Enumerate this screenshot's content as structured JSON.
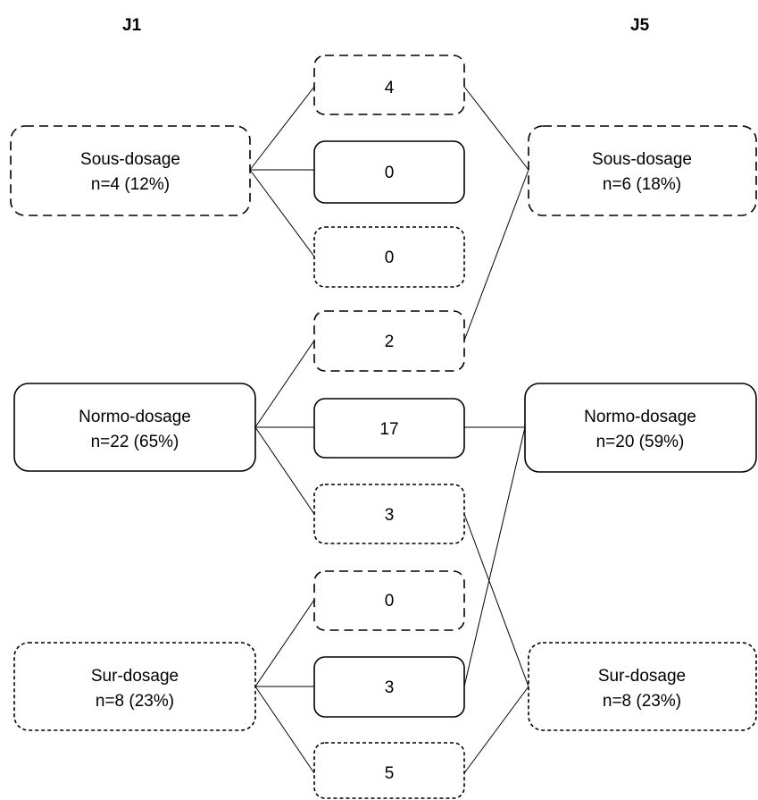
{
  "headers": {
    "left": "J1",
    "right": "J5"
  },
  "left_nodes": [
    {
      "line1": "Sous-dosage",
      "line2": "n=4 (12%)"
    },
    {
      "line1": "Normo-dosage",
      "line2": "n=22 (65%)"
    },
    {
      "line1": "Sur-dosage",
      "line2": "n=8 (23%)"
    }
  ],
  "right_nodes": [
    {
      "line1": "Sous-dosage",
      "line2": "n=6 (18%)"
    },
    {
      "line1": "Normo-dosage",
      "line2": "n=20 (59%)"
    },
    {
      "line1": "Sur-dosage",
      "line2": "n=8 (23%)"
    }
  ],
  "transitions": [
    {
      "from": "Sous-dosage",
      "to": "Sous-dosage",
      "count": "4"
    },
    {
      "from": "Sous-dosage",
      "to": "Normo-dosage",
      "count": "0"
    },
    {
      "from": "Sous-dosage",
      "to": "Sur-dosage",
      "count": "0"
    },
    {
      "from": "Normo-dosage",
      "to": "Sous-dosage",
      "count": "2"
    },
    {
      "from": "Normo-dosage",
      "to": "Normo-dosage",
      "count": "17"
    },
    {
      "from": "Normo-dosage",
      "to": "Sur-dosage",
      "count": "3"
    },
    {
      "from": "Sur-dosage",
      "to": "Sous-dosage",
      "count": "0"
    },
    {
      "from": "Sur-dosage",
      "to": "Normo-dosage",
      "count": "3"
    },
    {
      "from": "Sur-dosage",
      "to": "Sur-dosage",
      "count": "5"
    }
  ]
}
